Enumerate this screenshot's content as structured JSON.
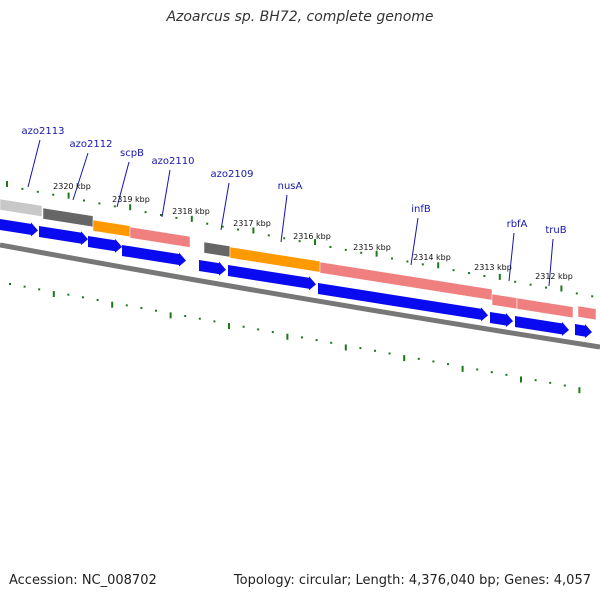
{
  "title": "Azoarcus sp. BH72, complete genome",
  "footer": {
    "accession": "Accession: NC_008702",
    "summary": "Topology: circular; Length: 4,376,040 bp; Genes: 4,057"
  },
  "colors": {
    "background": "#ffffff",
    "cds_arrow": "#0a0af0",
    "gene_label": "#1515b0",
    "tick": "#1a7a1a",
    "backbone": "#777777",
    "gene_light_gray": "#c8c8c8",
    "gene_dark_gray": "#666666",
    "gene_orange": "#ff9900",
    "gene_pink": "#f08080"
  },
  "scale_labels": [
    "2320 kbp",
    "2319 kbp",
    "2318 kbp",
    "2317 kbp",
    "2316 kbp",
    "2315 kbp",
    "2314 kbp",
    "2313 kbp",
    "2312 kbp"
  ],
  "genes": [
    {
      "name": "azo2113",
      "class": "gene_light_gray"
    },
    {
      "name": "azo2112",
      "class": "gene_dark_gray"
    },
    {
      "name": "scpB",
      "class": "gene_orange"
    },
    {
      "name": "azo2110",
      "class": "gene_pink"
    },
    {
      "name": "azo2109",
      "class": "gene_dark_gray"
    },
    {
      "name": "nusA",
      "class": "gene_orange"
    },
    {
      "name": "infB",
      "class": "gene_pink"
    },
    {
      "name": "rbfA",
      "class": "gene_pink"
    },
    {
      "name": "truB",
      "class": "gene_pink"
    }
  ]
}
